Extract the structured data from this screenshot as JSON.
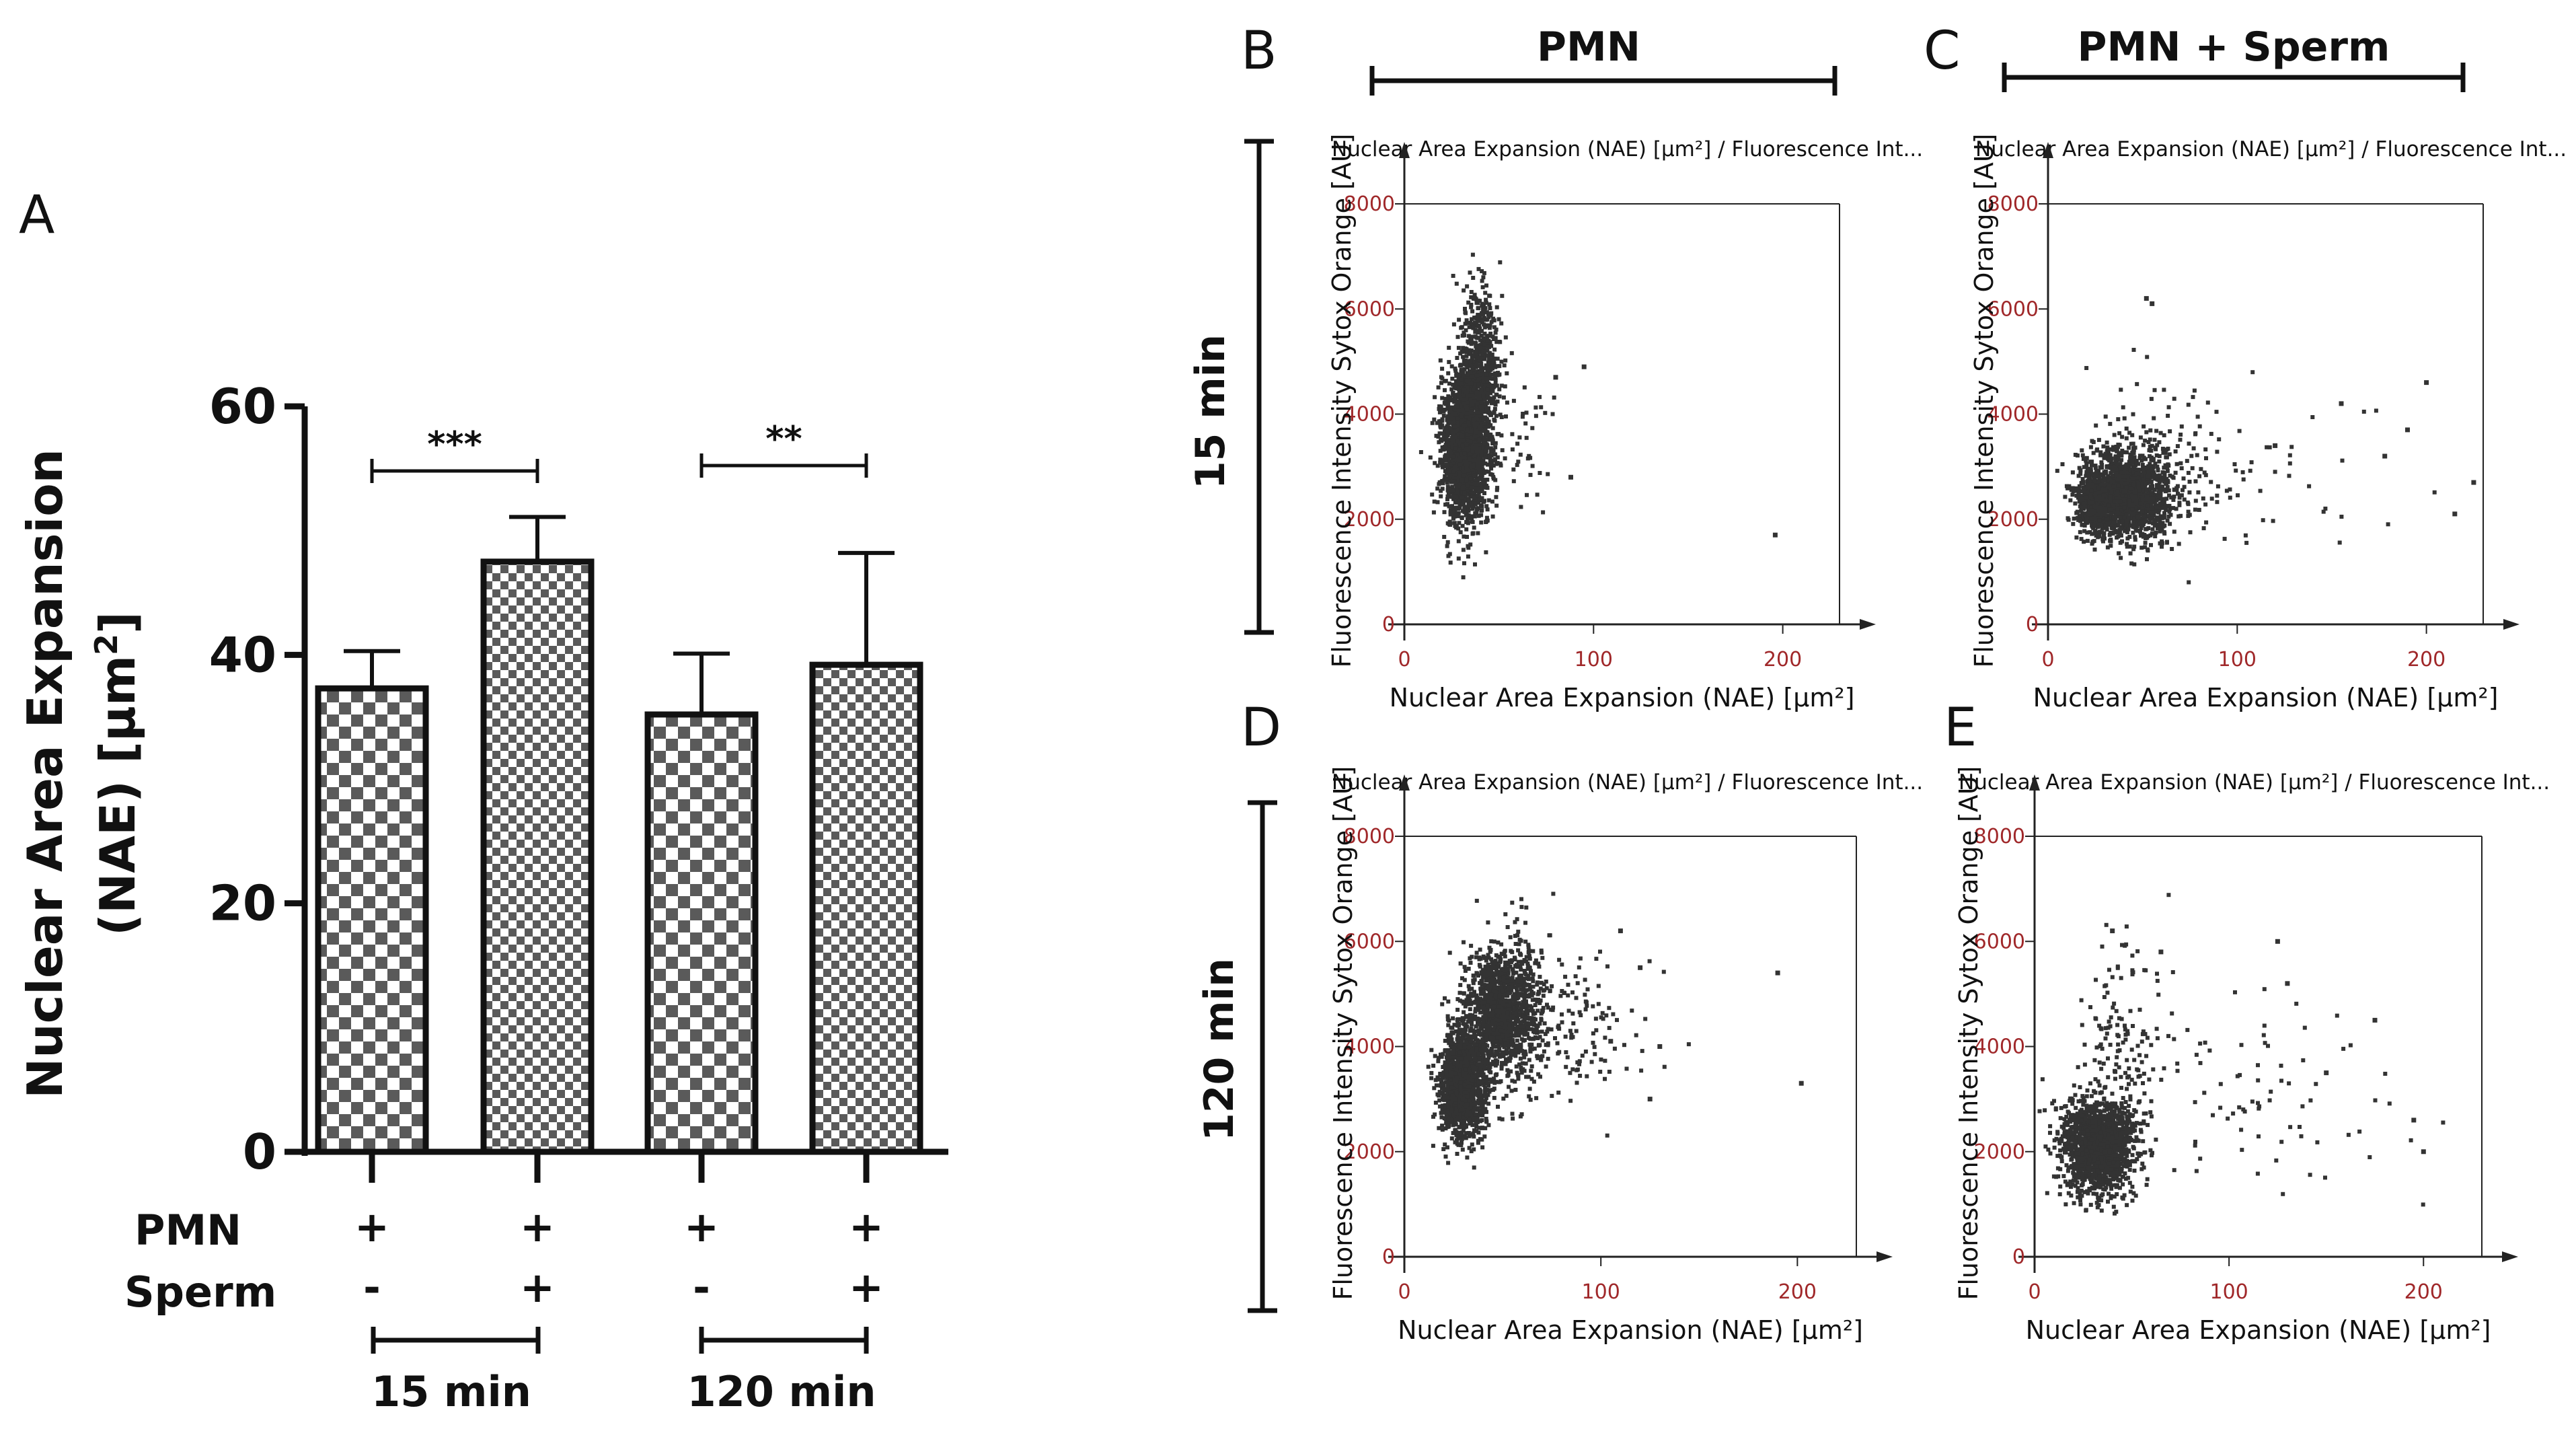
{
  "panel_letters": [
    "A",
    "B",
    "C",
    "D",
    "E"
  ],
  "colors": {
    "ink": "#111111",
    "dots": "#333333",
    "tick_red": "#a0282a"
  },
  "bar_panel": {
    "ylabel_line1": "Nuclear Area Expansion",
    "ylabel_line2": "(NAE) [µm",
    "ylabel_sup": "2",
    "ylabel_end": "]",
    "row_labels": {
      "pmn": "PMN",
      "sperm": "Sperm"
    },
    "time_labels": [
      "15 min",
      "120 min"
    ]
  },
  "header_labels": {
    "col_pmn": "PMN",
    "col_pmn_sperm": "PMN + Sperm",
    "row_15": "15 min",
    "row_120": "120 min"
  },
  "chart_data": [
    {
      "id": "A",
      "type": "bar",
      "categories": [
        "15 min PMN",
        "15 min PMN + Sperm",
        "120 min PMN",
        "120 min PMN + Sperm"
      ],
      "values": [
        37.3,
        47.5,
        35.2,
        39.2
      ],
      "errors": [
        3.0,
        3.6,
        4.9,
        9.0
      ],
      "ylabel": "Nuclear Area Expansion (NAE) [µm2]",
      "ylim": [
        0,
        60
      ],
      "yticks": [
        0,
        20,
        40,
        60
      ],
      "pmn_signs": [
        "+",
        "+",
        "+",
        "+"
      ],
      "sperm_signs": [
        "-",
        "+",
        "-",
        "+"
      ],
      "significance": [
        {
          "between": [
            0,
            1
          ],
          "label": "***"
        },
        {
          "between": [
            2,
            3
          ],
          "label": "**"
        }
      ]
    },
    {
      "id": "B",
      "type": "scatter",
      "title": "Nuclear Area Expansion (NAE) [µm²] / Fluorescence Int...",
      "xlabel": "Nuclear Area Expansion (NAE) [µm²]",
      "ylabel": "Fluorescence Intensity Sytox Orange [AU]",
      "xlim": [
        0,
        230
      ],
      "ylim": [
        0,
        8000
      ],
      "xticks": [
        0,
        100,
        200
      ],
      "yticks": [
        0,
        2000,
        4000,
        6000,
        8000
      ],
      "clusters": [
        {
          "n": 1900,
          "cx": 32,
          "cy": 3400,
          "sx": 6,
          "sy": 700
        },
        {
          "n": 700,
          "cx": 40,
          "cy": 4700,
          "sx": 5,
          "sy": 800
        },
        {
          "n": 60,
          "cx": 55,
          "cy": 3600,
          "sx": 14,
          "sy": 700
        }
      ],
      "outliers": [
        [
          80,
          4700
        ],
        [
          95,
          4900
        ],
        [
          88,
          2800
        ],
        [
          196,
          1700
        ]
      ]
    },
    {
      "id": "C",
      "type": "scatter",
      "title": "Nuclear Area Expansion (NAE) [µm²] / Fluorescence Int...",
      "xlabel": "Nuclear Area Expansion (NAE) [µm²]",
      "ylabel": "Fluorescence Intensity Sytox Orange [AU]",
      "xlim": [
        0,
        230
      ],
      "ylim": [
        0,
        8000
      ],
      "xticks": [
        0,
        100,
        200
      ],
      "yticks": [
        0,
        2000,
        4000,
        6000,
        8000
      ],
      "clusters": [
        {
          "n": 1500,
          "cx": 42,
          "cy": 2450,
          "sx": 12,
          "sy": 420
        },
        {
          "n": 500,
          "cx": 25,
          "cy": 2300,
          "sx": 4,
          "sy": 300
        },
        {
          "n": 140,
          "cx": 60,
          "cy": 2900,
          "sx": 22,
          "sy": 900
        },
        {
          "n": 40,
          "cx": 110,
          "cy": 2800,
          "sx": 45,
          "sy": 800
        }
      ],
      "outliers": [
        [
          52,
          6200
        ],
        [
          55,
          6100
        ],
        [
          200,
          4600
        ],
        [
          215,
          2100
        ],
        [
          225,
          2700
        ],
        [
          190,
          3700
        ],
        [
          178,
          3200
        ],
        [
          155,
          4200
        ],
        [
          120,
          3400
        ]
      ]
    },
    {
      "id": "D",
      "type": "scatter",
      "title": "Nuclear Area Expansion (NAE) [µm²] / Fluorescence Int...",
      "xlabel": "Nuclear Area Expansion (NAE) [µm²]",
      "ylabel": "Fluorescence Intensity Sytox Orange [AU]",
      "xlim": [
        0,
        230
      ],
      "ylim": [
        0,
        8000
      ],
      "xticks": [
        0,
        100,
        200
      ],
      "yticks": [
        0,
        2000,
        4000,
        6000,
        8000
      ],
      "clusters": [
        {
          "n": 1400,
          "cx": 30,
          "cy": 3300,
          "sx": 6,
          "sy": 500
        },
        {
          "n": 1300,
          "cx": 50,
          "cy": 4700,
          "sx": 10,
          "sy": 650
        },
        {
          "n": 160,
          "cx": 80,
          "cy": 4300,
          "sx": 22,
          "sy": 700
        }
      ],
      "outliers": [
        [
          110,
          6200
        ],
        [
          120,
          5500
        ],
        [
          130,
          4000
        ],
        [
          190,
          5400
        ],
        [
          202,
          3300
        ],
        [
          125,
          3000
        ],
        [
          105,
          4100
        ]
      ]
    },
    {
      "id": "E",
      "type": "scatter",
      "title": "Nuclear Area Expansion (NAE) [µm²] / Fluorescence Int...",
      "xlabel": "Nuclear Area Expansion (NAE) [µm²]",
      "ylabel": "Fluorescence Intensity Sytox Orange [AU]",
      "xlim": [
        0,
        230
      ],
      "ylim": [
        0,
        8000
      ],
      "xticks": [
        0,
        100,
        200
      ],
      "yticks": [
        0,
        2000,
        4000,
        6000,
        8000
      ],
      "clusters": [
        {
          "n": 1600,
          "cx": 33,
          "cy": 2100,
          "sx": 9,
          "sy": 430
        },
        {
          "n": 150,
          "cx": 45,
          "cy": 3800,
          "sx": 10,
          "sy": 1200
        },
        {
          "n": 90,
          "cx": 110,
          "cy": 3200,
          "sx": 45,
          "sy": 1100
        }
      ],
      "outliers": [
        [
          40,
          6200
        ],
        [
          65,
          5800
        ],
        [
          125,
          6000
        ],
        [
          130,
          5200
        ],
        [
          175,
          4500
        ],
        [
          200,
          2000
        ],
        [
          195,
          2600
        ],
        [
          150,
          3500
        ]
      ]
    }
  ]
}
